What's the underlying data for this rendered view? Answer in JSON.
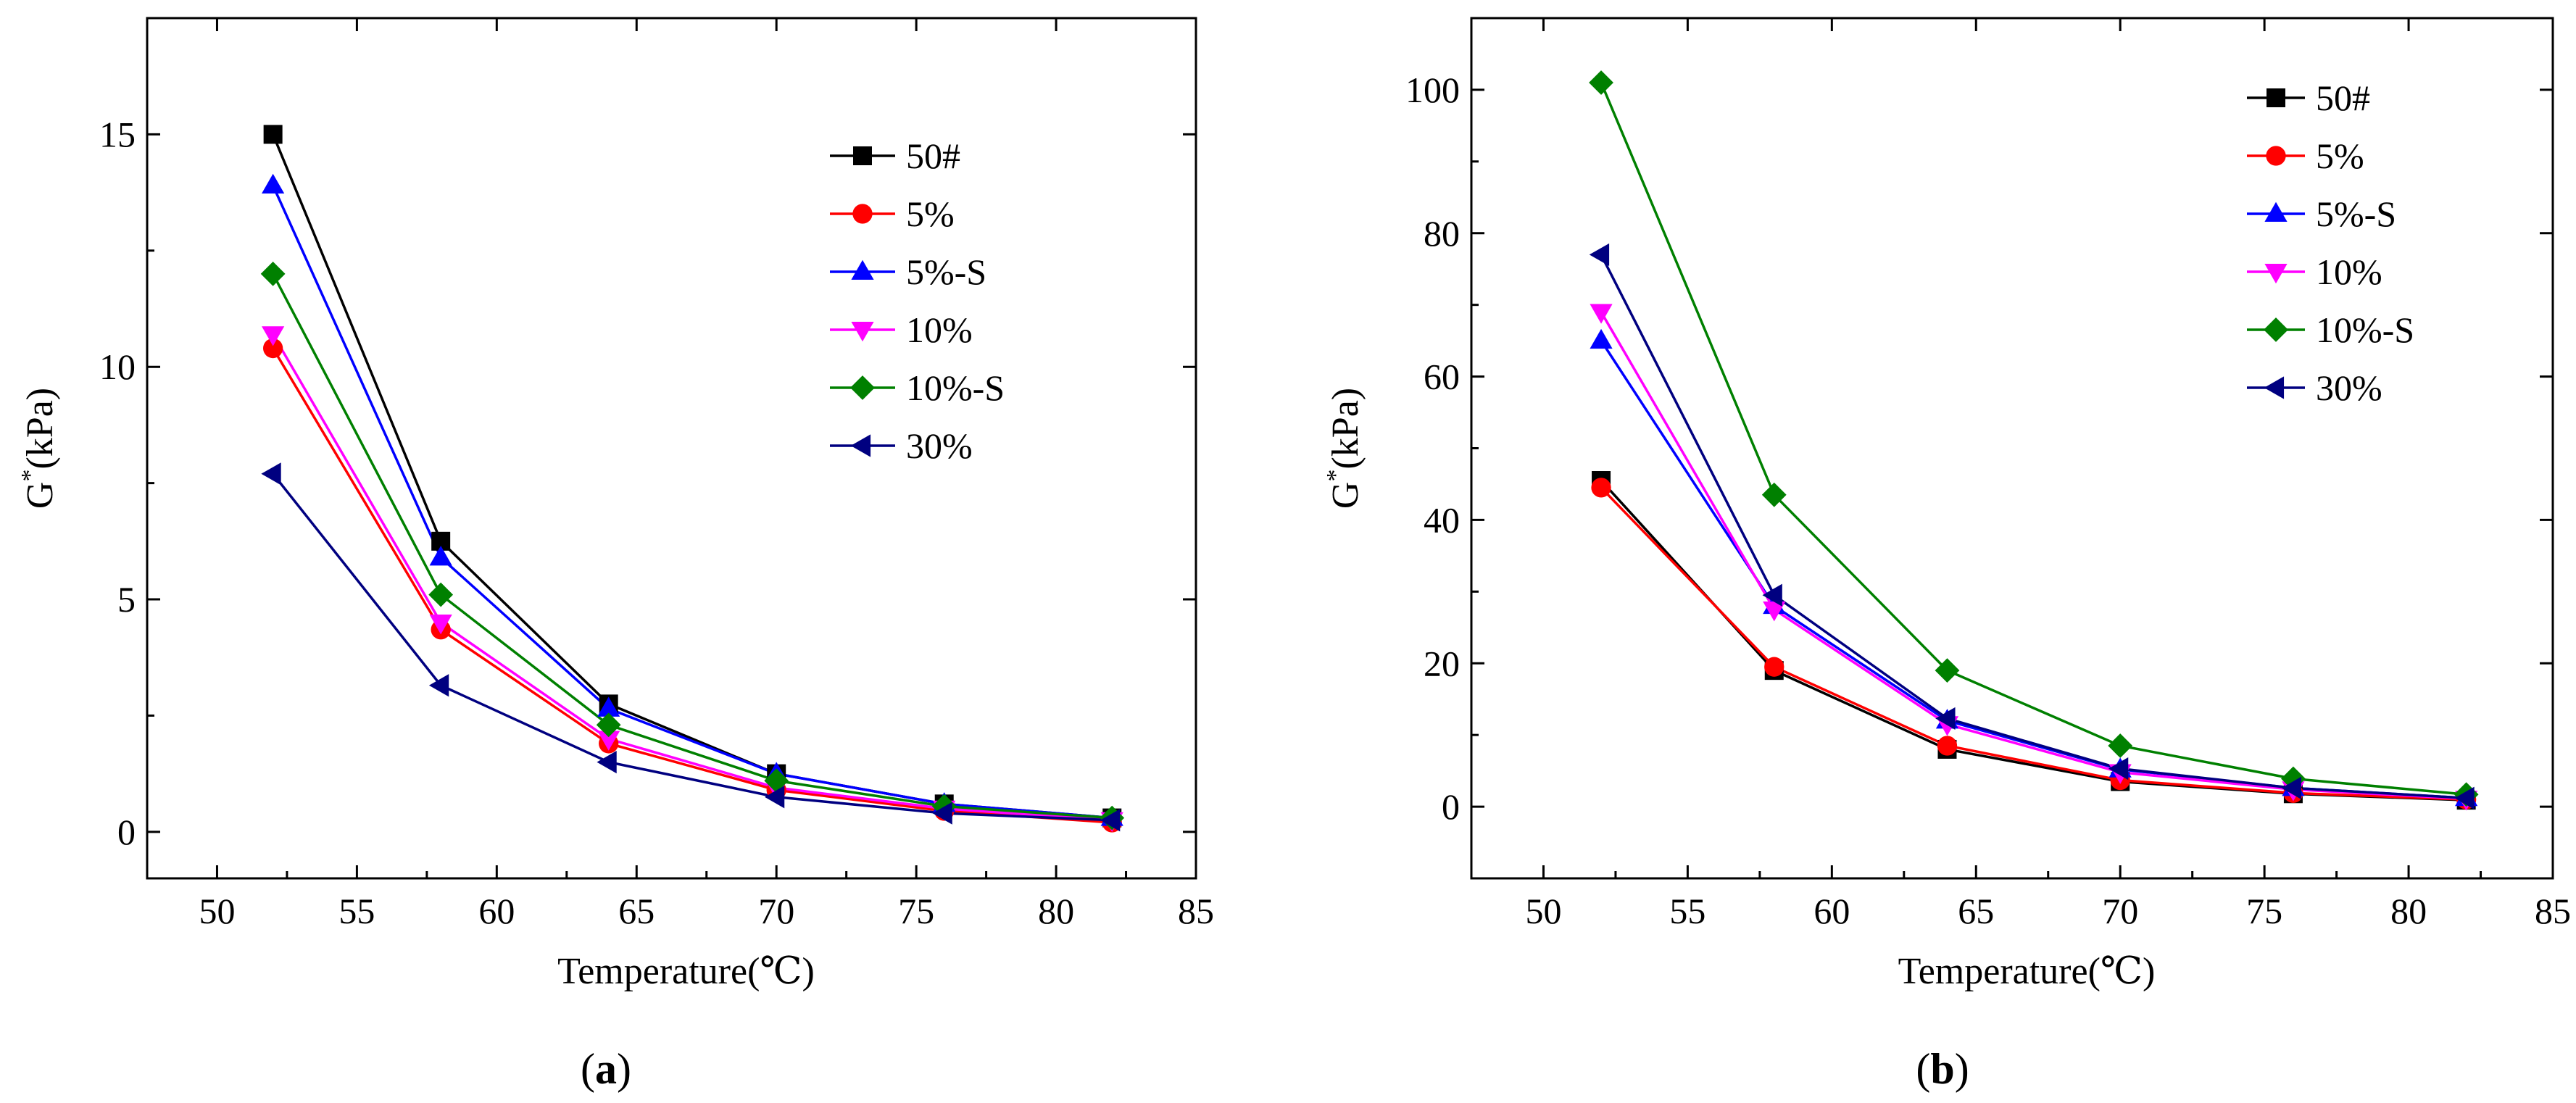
{
  "chart_data": [
    {
      "type": "line",
      "panel_label": "a",
      "xlabel": "Temperature(℃)",
      "ylabel_main": "G",
      "ylabel_sup": "*",
      "ylabel_unit": "(kPa)",
      "xlim": [
        47.5,
        85
      ],
      "ylim": [
        -1,
        17.5
      ],
      "xticks": [
        50,
        55,
        60,
        65,
        70,
        75,
        80,
        85
      ],
      "yticks": [
        0,
        5,
        10,
        15
      ],
      "x": [
        52,
        58,
        64,
        70,
        76,
        82
      ],
      "legend_position": "top-right",
      "series": [
        {
          "name": "50#",
          "color": "#000000",
          "marker": "square",
          "values": [
            15.0,
            6.25,
            2.75,
            1.25,
            0.6,
            0.3
          ]
        },
        {
          "name": "5%",
          "color": "#ff0000",
          "marker": "circle",
          "values": [
            10.4,
            4.35,
            1.9,
            0.9,
            0.45,
            0.2
          ]
        },
        {
          "name": "5%-S",
          "color": "#0000ff",
          "marker": "triangle-up",
          "values": [
            13.9,
            5.9,
            2.65,
            1.25,
            0.6,
            0.3
          ]
        },
        {
          "name": "10%",
          "color": "#ff00ff",
          "marker": "triangle-down",
          "values": [
            10.7,
            4.5,
            2.0,
            0.95,
            0.5,
            0.25
          ]
        },
        {
          "name": "10%-S",
          "color": "#008000",
          "marker": "diamond",
          "values": [
            12.0,
            5.1,
            2.3,
            1.1,
            0.55,
            0.3
          ]
        },
        {
          "name": "30%",
          "color": "#000080",
          "marker": "triangle-left",
          "values": [
            7.7,
            3.15,
            1.5,
            0.75,
            0.4,
            0.25
          ]
        }
      ]
    },
    {
      "type": "line",
      "panel_label": "b",
      "xlabel": "Temperature(℃)",
      "ylabel_main": "G",
      "ylabel_sup": "*",
      "ylabel_unit": "(kPa)",
      "xlim": [
        47.5,
        85
      ],
      "ylim": [
        -10,
        110
      ],
      "xticks": [
        50,
        55,
        60,
        65,
        70,
        75,
        80,
        85
      ],
      "yticks": [
        0,
        20,
        40,
        60,
        80,
        100
      ],
      "x": [
        52,
        58,
        64,
        70,
        76,
        82
      ],
      "legend_position": "top-right",
      "series": [
        {
          "name": "50#",
          "color": "#000000",
          "marker": "square",
          "values": [
            45.5,
            19.0,
            8.0,
            3.5,
            1.8,
            0.9
          ]
        },
        {
          "name": "5%",
          "color": "#ff0000",
          "marker": "circle",
          "values": [
            44.5,
            19.5,
            8.5,
            3.7,
            1.9,
            1.0
          ]
        },
        {
          "name": "5%-S",
          "color": "#0000ff",
          "marker": "triangle-up",
          "values": [
            65.0,
            28.0,
            12.0,
            5.2,
            2.6,
            1.2
          ]
        },
        {
          "name": "10%",
          "color": "#ff00ff",
          "marker": "triangle-down",
          "values": [
            69.0,
            27.5,
            11.5,
            4.8,
            2.4,
            1.1
          ]
        },
        {
          "name": "10%-S",
          "color": "#008000",
          "marker": "diamond",
          "values": [
            101.0,
            43.5,
            19.0,
            8.5,
            3.9,
            1.7
          ]
        },
        {
          "name": "30%",
          "color": "#000080",
          "marker": "triangle-left",
          "values": [
            77.0,
            29.5,
            12.3,
            5.3,
            2.6,
            1.2
          ]
        }
      ]
    }
  ]
}
